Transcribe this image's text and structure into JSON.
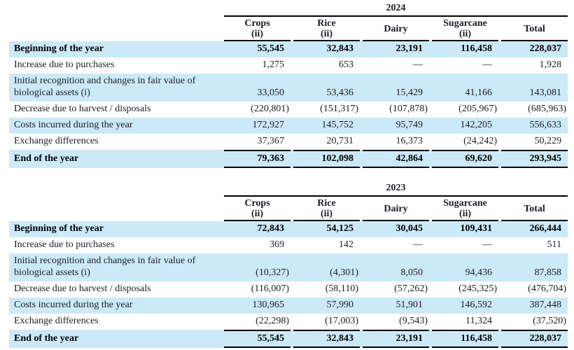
{
  "styles": {
    "highlight_color": "#cce9f8",
    "rule_color": "#000000",
    "text_color": "#1a1d24"
  },
  "tables": [
    {
      "year": "2024",
      "columns": [
        {
          "name": "Crops",
          "sub": "(ii)"
        },
        {
          "name": "Rice",
          "sub": "(ii)"
        },
        {
          "name": "Dairy",
          "sub": ""
        },
        {
          "name": "Sugarcane",
          "sub": "(ii)"
        },
        {
          "name": "Total",
          "sub": ""
        }
      ],
      "rows": [
        {
          "label": "Beginning of the year",
          "values": [
            "55,545",
            "32,843",
            "23,191",
            "116,458",
            "228,037"
          ]
        },
        {
          "label": "Increase due to purchases",
          "values": [
            "1,275",
            "653",
            "—",
            "—",
            "1,928"
          ]
        },
        {
          "label": "Initial recognition and changes in fair value of biological assets (i)",
          "values": [
            "33,050",
            "53,436",
            "15,429",
            "41,166",
            "143,081"
          ]
        },
        {
          "label": "Decrease due to harvest / disposals",
          "values": [
            "(220,801)",
            "(151,317)",
            "(107,878)",
            "(205,967)",
            "(685,963)"
          ]
        },
        {
          "label": "Costs incurred during the year",
          "values": [
            "172,927",
            "145,752",
            "95,749",
            "142,205",
            "556,633"
          ]
        },
        {
          "label": "Exchange differences",
          "values": [
            "37,367",
            "20,731",
            "16,373",
            "(24,242)",
            "50,229"
          ]
        },
        {
          "label": "End of the year",
          "values": [
            "79,363",
            "102,098",
            "42,864",
            "69,620",
            "293,945"
          ]
        }
      ]
    },
    {
      "year": "2023",
      "columns": [
        {
          "name": "Crops",
          "sub": "(ii)"
        },
        {
          "name": "Rice",
          "sub": "(ii)"
        },
        {
          "name": "Dairy",
          "sub": ""
        },
        {
          "name": "Sugarcane",
          "sub": "(ii)"
        },
        {
          "name": "Total",
          "sub": ""
        }
      ],
      "rows": [
        {
          "label": "Beginning of the year",
          "values": [
            "72,843",
            "54,125",
            "30,045",
            "109,431",
            "266,444"
          ]
        },
        {
          "label": "Increase due to purchases",
          "values": [
            "369",
            "142",
            "—",
            "—",
            "511"
          ]
        },
        {
          "label": "Initial recognition and changes in fair value of biological assets (i)",
          "values": [
            "(10,327)",
            "(4,301)",
            "8,050",
            "94,436",
            "87,858"
          ]
        },
        {
          "label": "Decrease due to harvest / disposals",
          "values": [
            "(116,007)",
            "(58,110)",
            "(57,262)",
            "(245,325)",
            "(476,704)"
          ]
        },
        {
          "label": "Costs incurred during the year",
          "values": [
            "130,965",
            "57,990",
            "51,901",
            "146,592",
            "387,448"
          ]
        },
        {
          "label": "Exchange differences",
          "values": [
            "(22,298)",
            "(17,003)",
            "(9,543)",
            "11,324",
            "(37,520)"
          ]
        },
        {
          "label": "End of the year",
          "values": [
            "55,545",
            "32,843",
            "23,191",
            "116,458",
            "228,037"
          ]
        }
      ]
    }
  ]
}
